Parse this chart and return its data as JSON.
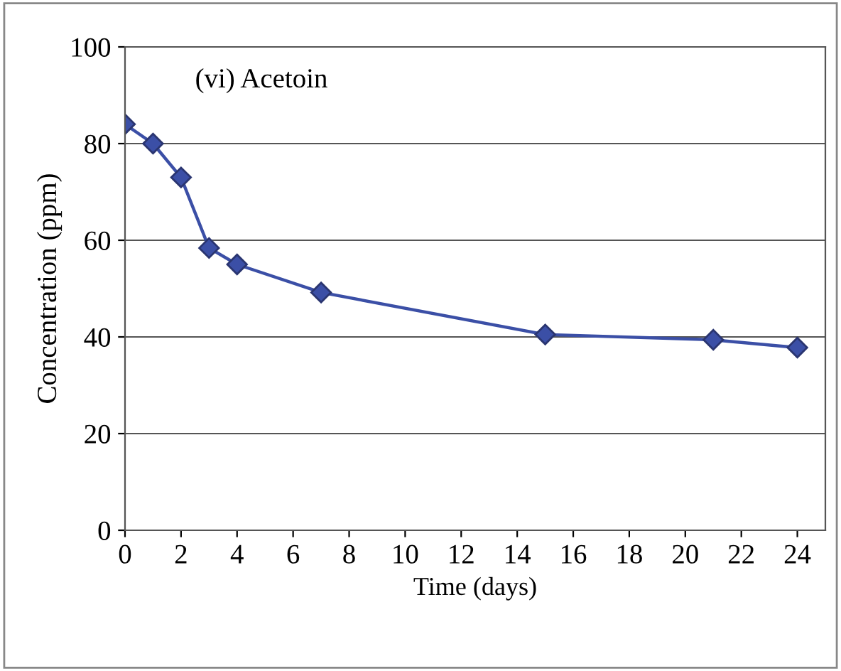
{
  "chart_data": {
    "type": "line",
    "xlabel": "Time (days)",
    "ylabel": "Concentration (ppm)",
    "annotations": [
      "(vi) Acetoin"
    ],
    "x": [
      0,
      1,
      2,
      3,
      4,
      7,
      15,
      21,
      24
    ],
    "series": [
      {
        "color": "#3b4fa6",
        "values": [
          84,
          80,
          73,
          58.4,
          55,
          49.2,
          40.5,
          39.4,
          37.8
        ]
      }
    ],
    "xlim": [
      0,
      25
    ],
    "xticks": [
      0,
      2,
      4,
      6,
      8,
      10,
      12,
      14,
      16,
      18,
      20,
      22,
      24
    ],
    "ylim": [
      0,
      100
    ],
    "yticks": [
      0,
      20,
      40,
      60,
      80,
      100
    ],
    "grid": "y",
    "marker": "diamond",
    "line_style": "solid",
    "legend": false
  }
}
